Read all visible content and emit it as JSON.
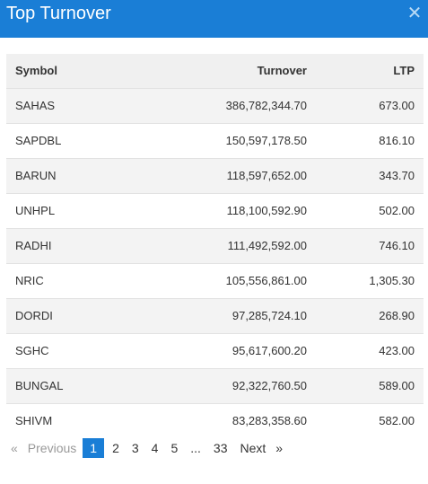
{
  "header": {
    "title": "Top Turnover",
    "close_icon": "close-icon"
  },
  "table": {
    "columns": [
      "Symbol",
      "Turnover",
      "LTP"
    ],
    "rows": [
      {
        "symbol": "SAHAS",
        "turnover": "386,782,344.70",
        "ltp": "673.00"
      },
      {
        "symbol": "SAPDBL",
        "turnover": "150,597,178.50",
        "ltp": "816.10"
      },
      {
        "symbol": "BARUN",
        "turnover": "118,597,652.00",
        "ltp": "343.70"
      },
      {
        "symbol": "UNHPL",
        "turnover": "118,100,592.90",
        "ltp": "502.00"
      },
      {
        "symbol": "RADHI",
        "turnover": "111,492,592.00",
        "ltp": "746.10"
      },
      {
        "symbol": "NRIC",
        "turnover": "105,556,861.00",
        "ltp": "1,305.30"
      },
      {
        "symbol": "DORDI",
        "turnover": "97,285,724.10",
        "ltp": "268.90"
      },
      {
        "symbol": "SGHC",
        "turnover": "95,617,600.20",
        "ltp": "423.00"
      },
      {
        "symbol": "BUNGAL",
        "turnover": "92,322,760.50",
        "ltp": "589.00"
      },
      {
        "symbol": "SHIVM",
        "turnover": "83,283,358.60",
        "ltp": "582.00"
      }
    ]
  },
  "pagination": {
    "prev_arrow": "«",
    "previous": "Previous",
    "pages": [
      "1",
      "2",
      "3",
      "4",
      "5",
      "...",
      "33"
    ],
    "next": "Next",
    "next_arrow": "»",
    "active_page": "1"
  },
  "colors": {
    "accent": "#1a7ed6",
    "header_row": "#f0f0f0",
    "zebra": "#f3f3f3"
  }
}
